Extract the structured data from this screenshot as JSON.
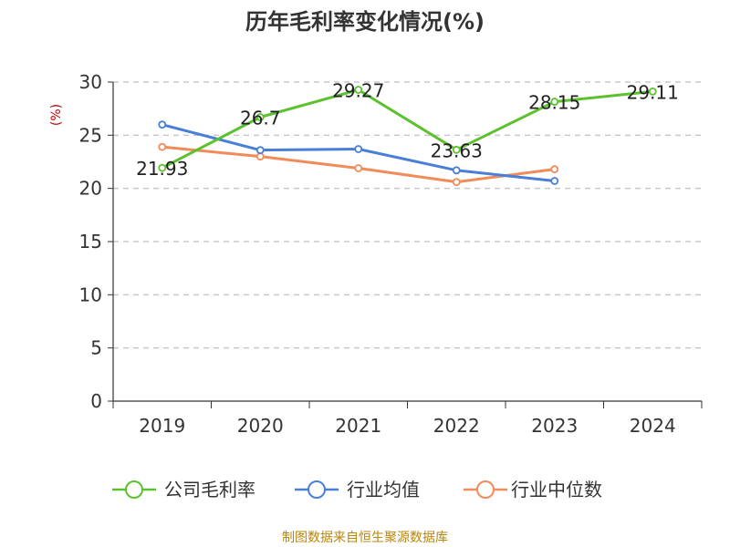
{
  "chart_data": {
    "type": "line",
    "title": "历年毛利率变化情况(%)",
    "ylabel": "(%)",
    "categories": [
      "2019",
      "2020",
      "2021",
      "2022",
      "2023",
      "2024"
    ],
    "ylim": [
      0,
      30
    ],
    "yticks": [
      0,
      5,
      10,
      15,
      20,
      25,
      30
    ],
    "grid": "horizontal dashed",
    "legend_position": "bottom",
    "series": [
      {
        "name": "公司毛利率",
        "color": "#5cc12e",
        "values": [
          21.93,
          26.7,
          29.27,
          23.63,
          28.15,
          29.11
        ],
        "labels": [
          "21.93",
          "26.7",
          "29.27",
          "23.63",
          "28.15",
          "29.11"
        ]
      },
      {
        "name": "行业均值",
        "color": "#4a7fd8",
        "values": [
          26.0,
          23.6,
          23.7,
          21.7,
          20.7,
          null
        ]
      },
      {
        "name": "行业中位数",
        "color": "#f28b5a",
        "values": [
          23.9,
          23.0,
          21.9,
          20.6,
          21.8,
          null
        ]
      }
    ]
  },
  "source": "制图数据来自恒生聚源数据库"
}
